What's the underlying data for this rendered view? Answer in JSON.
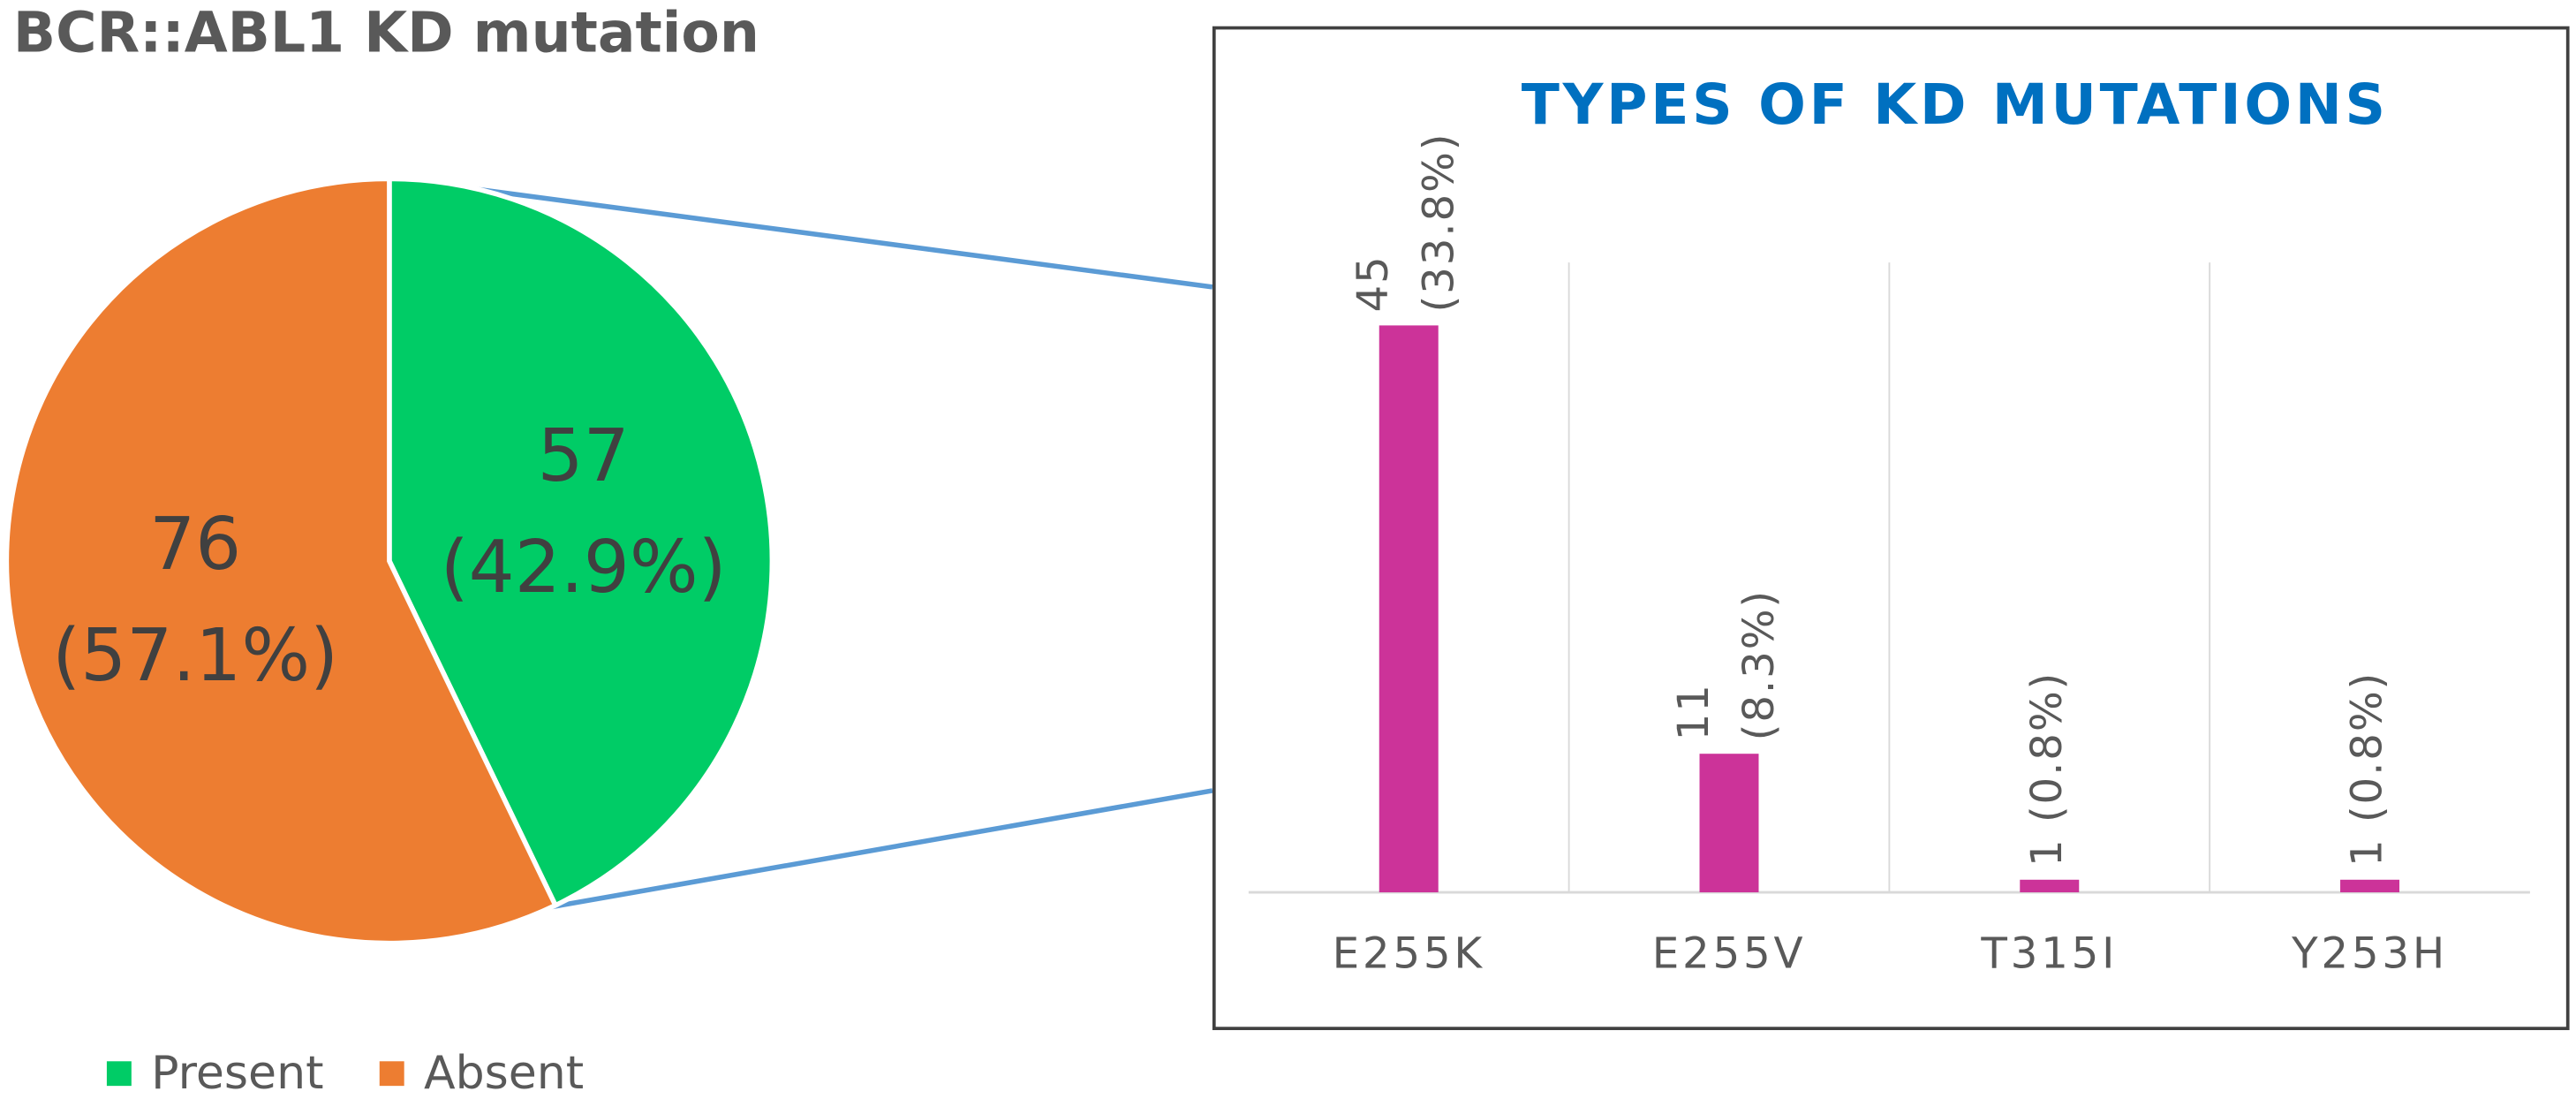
{
  "chart_data": [
    {
      "type": "pie",
      "title": "BCR::ABL1 KD mutation",
      "categories": [
        "Present",
        "Absent"
      ],
      "values": [
        57,
        76
      ],
      "value_labels": [
        "57 (42.9%)",
        "76 (57.1%)"
      ],
      "colors": [
        "#00cc66",
        "#ed7d31"
      ],
      "legend": "bottom"
    },
    {
      "type": "bar",
      "title": "TYPES OF KD MUTATIONS",
      "categories": [
        "E255K",
        "E255V",
        "T315I",
        "Y253H"
      ],
      "values": [
        45,
        11,
        1,
        1
      ],
      "value_labels": [
        "45 (33.8%)",
        "11 (8.3%)",
        "1 (0.8%)",
        "1 (0.8%)"
      ],
      "color": "#cc3399",
      "ylim": [
        0,
        50
      ]
    }
  ]
}
